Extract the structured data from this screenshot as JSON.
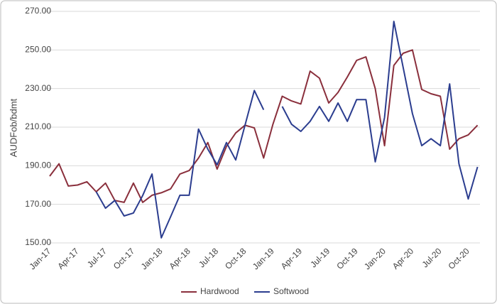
{
  "chart_data": {
    "type": "line",
    "y_label": "AUDFob/bdmt",
    "categories": [
      "Jan-17",
      null,
      null,
      "Apr-17",
      null,
      null,
      "Jul-17",
      null,
      null,
      "Oct-17",
      null,
      null,
      "Jan-18",
      null,
      null,
      "Apr-18",
      null,
      null,
      "Jul-18",
      null,
      null,
      "Oct-18",
      null,
      null,
      "Jan-19",
      null,
      null,
      "Apr-19",
      null,
      null,
      "Jul-19",
      null,
      null,
      "Oct-19",
      null,
      null,
      "Jan-20",
      null,
      null,
      "Apr-20",
      null,
      null,
      "Jul-20",
      null,
      null,
      "Oct-20",
      null
    ],
    "series": [
      {
        "name": "Hardwood",
        "color": "#8a2f3c",
        "values": [
          184.6,
          191,
          179.5,
          180,
          181.7,
          176.5,
          181,
          172,
          171,
          181,
          171,
          174.7,
          176,
          178,
          185.7,
          187.5,
          194,
          202,
          188.3,
          200,
          207,
          211,
          209.6,
          194,
          211.5,
          226,
          223.6,
          222,
          239,
          235.4,
          222.5,
          228,
          236,
          244.6,
          246.4,
          230,
          200.4,
          242,
          248.3,
          250,
          229.5,
          227.3,
          226,
          198.6,
          204,
          206,
          211
        ]
      },
      {
        "name": "Softwood",
        "color": "#2b3d8f",
        "values": [
          null,
          null,
          null,
          null,
          null,
          176.5,
          168,
          172,
          164,
          165.5,
          174.6,
          185.7,
          152.6,
          163.6,
          174.7,
          174.7,
          209,
          198.6,
          190.5,
          202,
          193,
          211,
          229,
          219,
          null,
          220.7,
          211.5,
          207.8,
          213,
          220.7,
          213,
          222.5,
          213,
          224.3,
          224.3,
          192,
          215,
          264.8,
          241,
          217,
          200.4,
          204,
          200.4,
          232.4,
          191,
          172.8,
          189.4
        ]
      }
    ],
    "ylim": [
      150,
      270
    ],
    "yticks": [
      {
        "value": 150,
        "label": "150.00"
      },
      {
        "value": 170,
        "label": "170.00"
      },
      {
        "value": 190,
        "label": "190.00"
      },
      {
        "value": 210,
        "label": "210.00"
      },
      {
        "value": 230,
        "label": "230.00"
      },
      {
        "value": 250,
        "label": "250.00"
      },
      {
        "value": 270,
        "label": "270.00"
      }
    ],
    "grid": true,
    "legend": "bottom"
  }
}
